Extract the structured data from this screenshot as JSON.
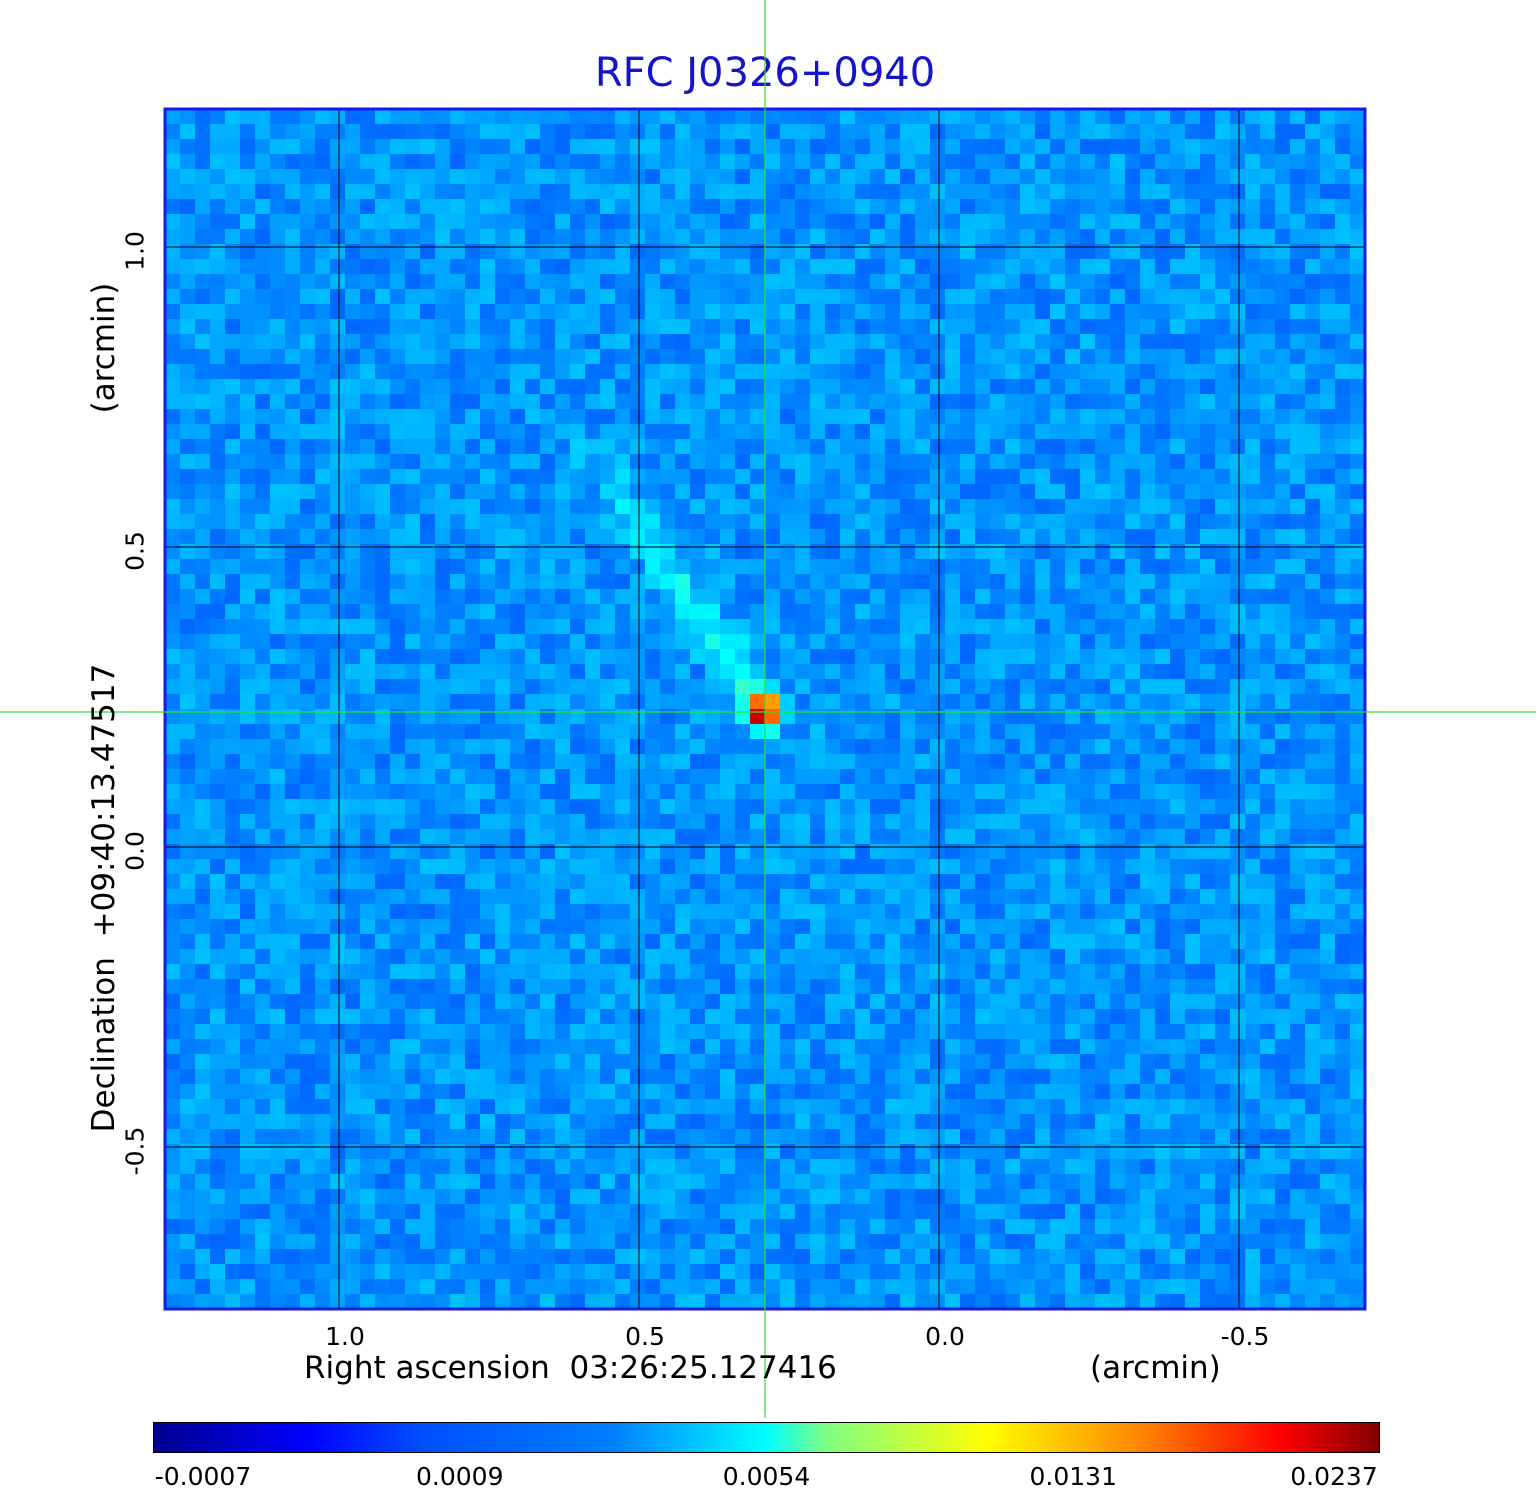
{
  "chart_data": {
    "type": "heatmap",
    "title": "RFC J0326+0940",
    "xlabel": "Right ascension  03:26:25.127416",
    "xunit": "(arcmin)",
    "ylabel": "Declination  +09:40:13.47517",
    "yunit": "(arcmin)",
    "x_ticks": [
      "1.0",
      "0.5",
      "0.0",
      "-0.5"
    ],
    "y_ticks": [
      "1.0",
      "0.5",
      "0.0",
      "-0.5"
    ],
    "x_tick_values": [
      1.0,
      0.5,
      0.0,
      -0.5
    ],
    "y_tick_values": [
      1.0,
      0.5,
      0.0,
      -0.5
    ],
    "xlim": [
      1.29,
      -0.71
    ],
    "ylim": [
      -0.77,
      1.23
    ],
    "grid": true,
    "crosshair": {
      "x": 0.29,
      "y": 0.225
    },
    "source": {
      "peak_x": 0.29,
      "peak_y": 0.225,
      "peak_value": 0.0237,
      "jet_end_x": 0.58,
      "jet_end_y": 0.66
    },
    "colormap": "jet",
    "colorbar_ticks": [
      "-0.0007",
      "0.0009",
      "0.0054",
      "0.0131",
      "0.0237"
    ],
    "colorbar_range": [
      -0.0007,
      0.0237
    ]
  }
}
